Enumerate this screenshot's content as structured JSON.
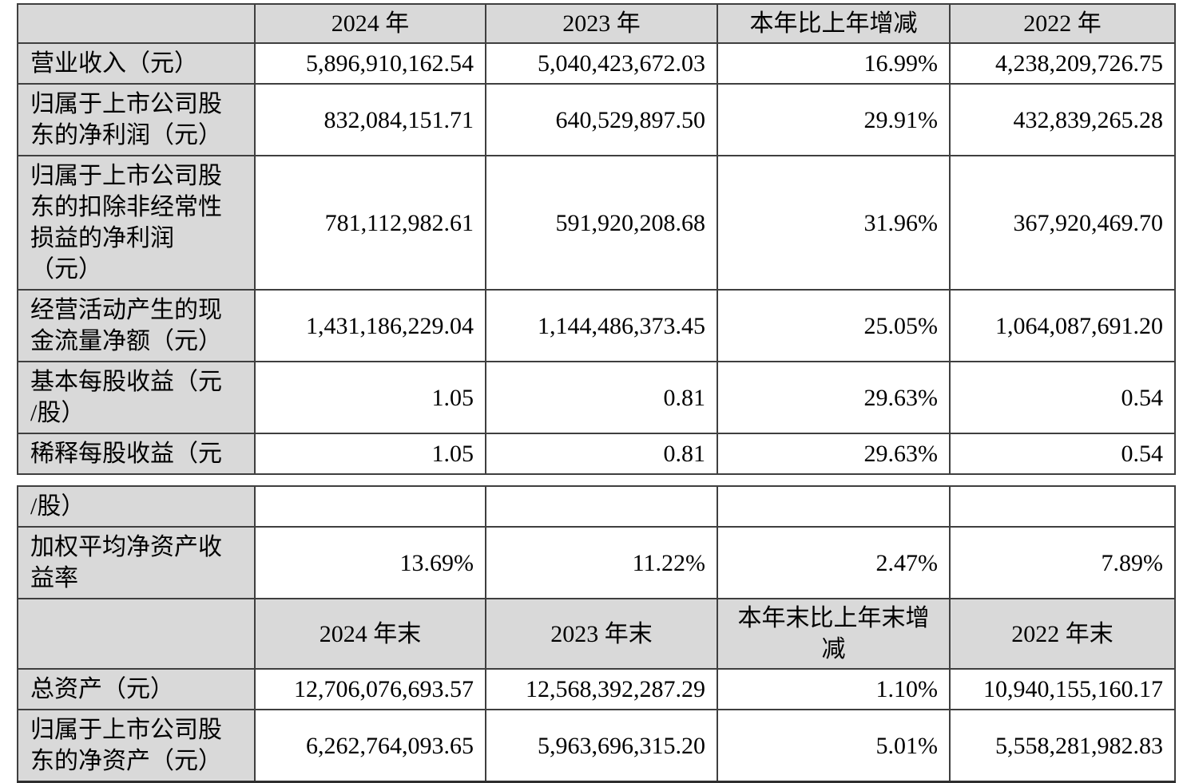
{
  "colors": {
    "shaded_cell_bg": "#d9d9d9",
    "border": "#3f3f3f",
    "text": "#000000"
  },
  "table": {
    "section1": {
      "header": [
        "",
        "2024 年",
        "2023 年",
        "本年比上年增减",
        "2022 年"
      ],
      "rows": [
        {
          "label": "营业收入（元）",
          "v1": "5,896,910,162.54",
          "v2": "5,040,423,672.03",
          "v3": "16.99%",
          "v4": "4,238,209,726.75"
        },
        {
          "label": "归属于上市公司股\n东的净利润（元）",
          "v1": "832,084,151.71",
          "v2": "640,529,897.50",
          "v3": "29.91%",
          "v4": "432,839,265.28"
        },
        {
          "label": "归属于上市公司股\n东的扣除非经常性\n损益的净利润\n（元）",
          "v1": "781,112,982.61",
          "v2": "591,920,208.68",
          "v3": "31.96%",
          "v4": "367,920,469.70"
        },
        {
          "label": "经营活动产生的现\n金流量净额（元）",
          "v1": "1,431,186,229.04",
          "v2": "1,144,486,373.45",
          "v3": "25.05%",
          "v4": "1,064,087,691.20"
        },
        {
          "label": "基本每股收益（元\n/股）",
          "v1": "1.05",
          "v2": "0.81",
          "v3": "29.63%",
          "v4": "0.54"
        },
        {
          "label": "稀释每股收益（元",
          "v1": "1.05",
          "v2": "0.81",
          "v3": "29.63%",
          "v4": "0.54"
        }
      ]
    },
    "section2": {
      "rows_before_header": [
        {
          "label": "/股）",
          "v1": "",
          "v2": "",
          "v3": "",
          "v4": ""
        },
        {
          "label": "加权平均净资产收\n益率",
          "v1": "13.69%",
          "v2": "11.22%",
          "v3": "2.47%",
          "v4": "7.89%"
        }
      ],
      "header": [
        "",
        "2024 年末",
        "2023 年末",
        "本年末比上年末增\n减",
        "2022 年末"
      ],
      "rows_after_header": [
        {
          "label": "总资产（元）",
          "v1": "12,706,076,693.57",
          "v2": "12,568,392,287.29",
          "v3": "1.10%",
          "v4": "10,940,155,160.17"
        },
        {
          "label": "归属于上市公司股\n东的净资产（元）",
          "v1": "6,262,764,093.65",
          "v2": "5,963,696,315.20",
          "v3": "5.01%",
          "v4": "5,558,281,982.83"
        }
      ]
    }
  }
}
